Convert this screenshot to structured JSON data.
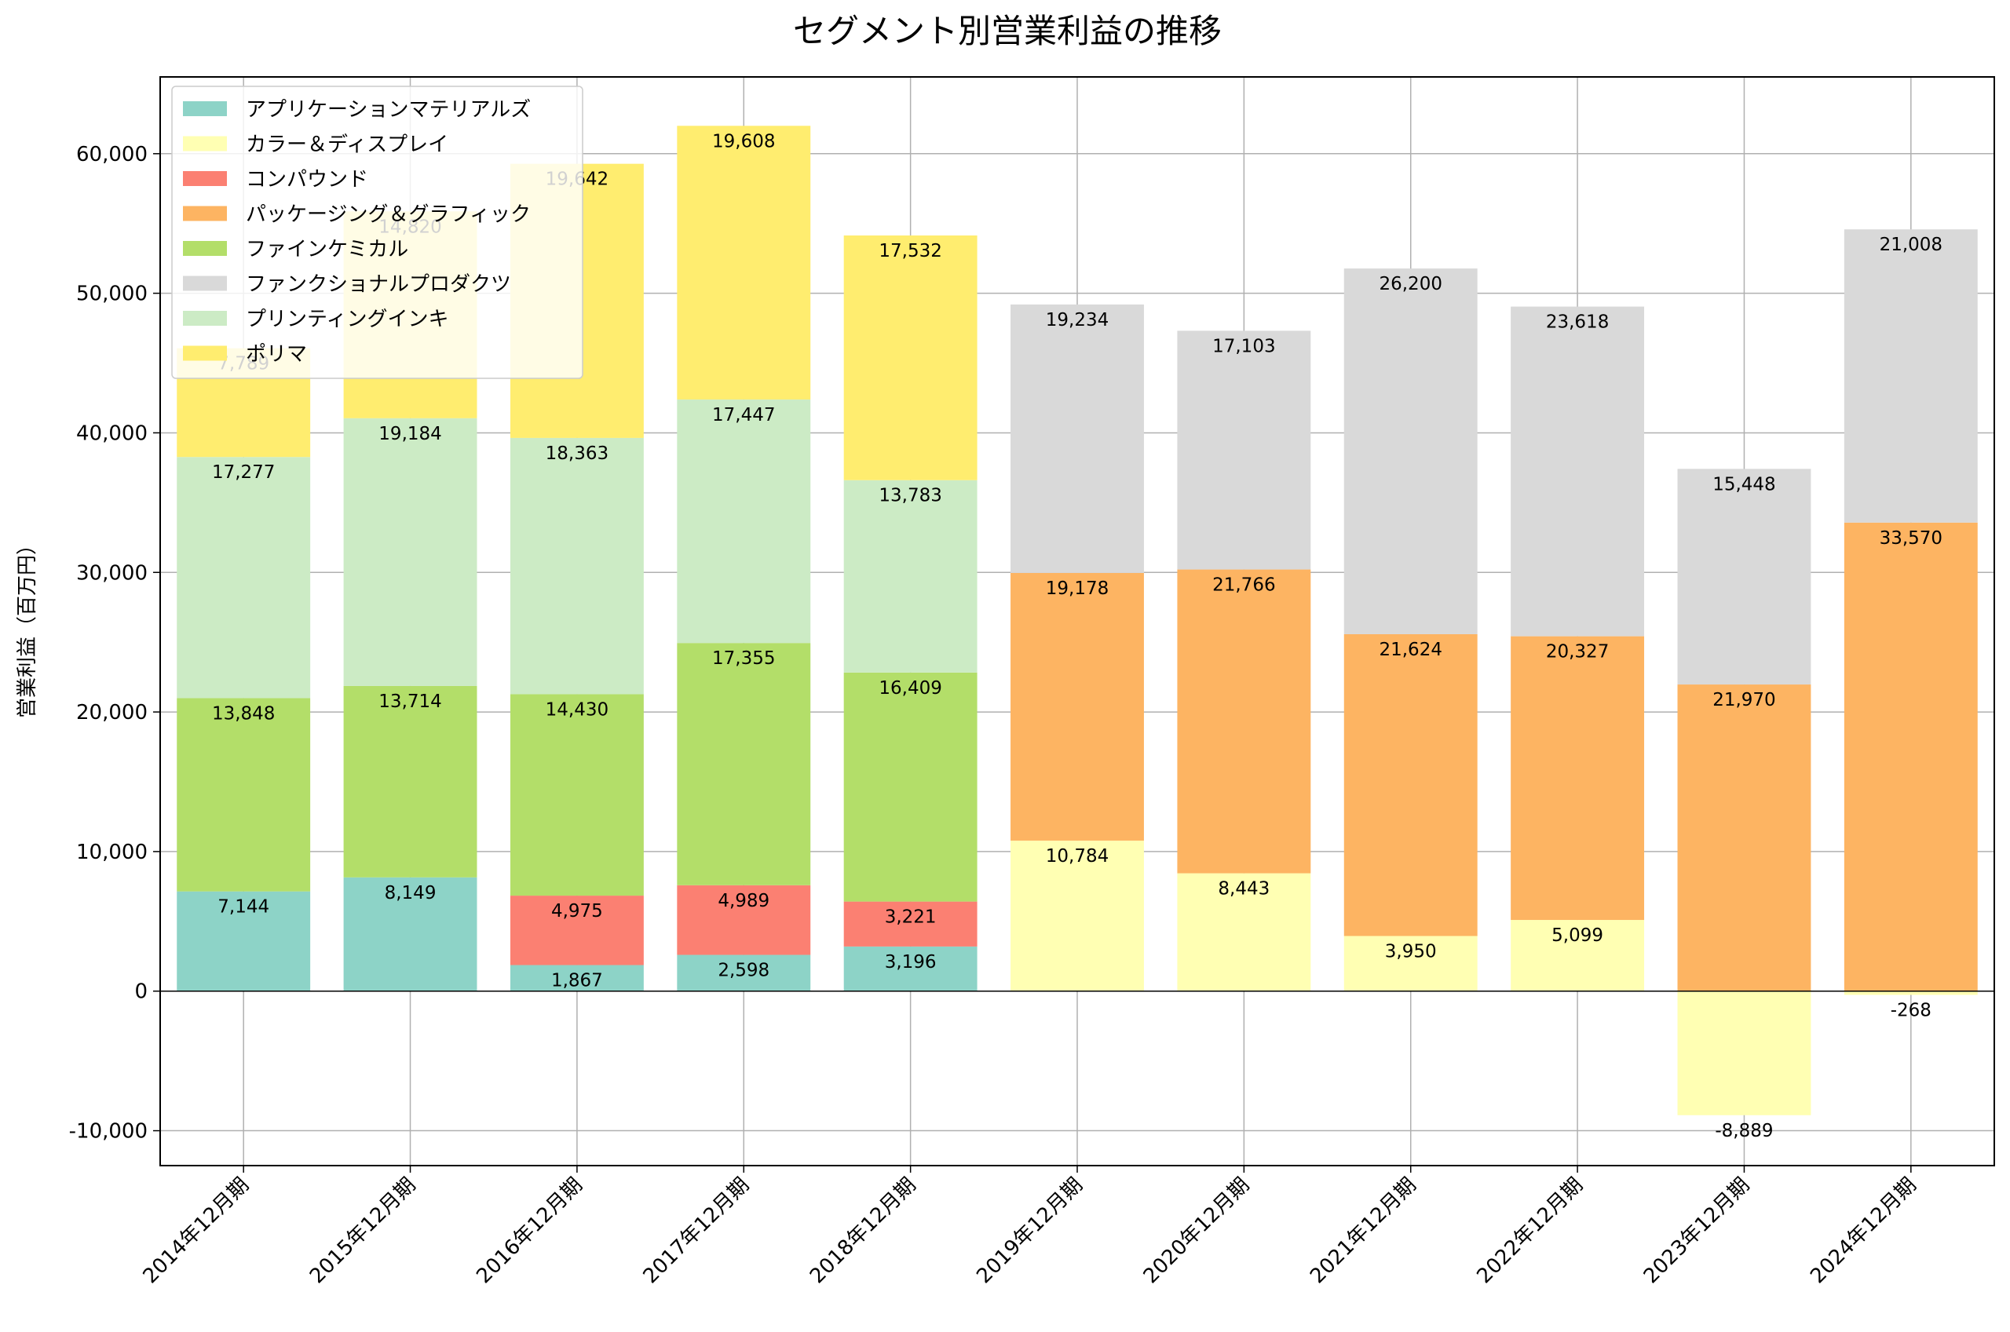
{
  "chart_data": {
    "type": "bar",
    "stacked": true,
    "title": "セグメント別営業利益の推移",
    "xlabel": "",
    "ylabel": "営業利益（百万円）",
    "ylim": [
      -12500,
      65500
    ],
    "yticks": [
      -10000,
      0,
      10000,
      20000,
      30000,
      40000,
      50000,
      60000
    ],
    "ytick_labels": [
      "-10,000",
      "0",
      "10,000",
      "20,000",
      "30,000",
      "40,000",
      "50,000",
      "60,000"
    ],
    "grid": true,
    "legend_position": "top-left",
    "categories": [
      "2014年12月期",
      "2015年12月期",
      "2016年12月期",
      "2017年12月期",
      "2018年12月期",
      "2019年12月期",
      "2020年12月期",
      "2021年12月期",
      "2022年12月期",
      "2023年12月期",
      "2024年12月期"
    ],
    "series": [
      {
        "name": "アプリケーションマテリアルズ",
        "color": "#8dd3c7",
        "values": [
          7144,
          8149,
          1867,
          2598,
          3196,
          null,
          null,
          null,
          null,
          null,
          null
        ]
      },
      {
        "name": "カラー＆ディスプレイ",
        "color": "#ffffb3",
        "values": [
          null,
          null,
          null,
          null,
          null,
          10784,
          8443,
          3950,
          5099,
          -8889,
          -268
        ]
      },
      {
        "name": "コンパウンド",
        "color": "#fb8072",
        "values": [
          null,
          null,
          4975,
          4989,
          3221,
          null,
          null,
          null,
          null,
          null,
          null
        ]
      },
      {
        "name": "パッケージング＆グラフィック",
        "color": "#fdb462",
        "values": [
          null,
          null,
          null,
          null,
          null,
          19178,
          21766,
          21624,
          20327,
          21970,
          33570
        ]
      },
      {
        "name": "ファインケミカル",
        "color": "#b3de69",
        "values": [
          13848,
          13714,
          14430,
          17355,
          16409,
          null,
          null,
          null,
          null,
          null,
          null
        ]
      },
      {
        "name": "ファンクショナルプロダクツ",
        "color": "#d9d9d9",
        "values": [
          null,
          null,
          null,
          null,
          null,
          19234,
          17103,
          26200,
          23618,
          15448,
          21008
        ]
      },
      {
        "name": "プリンティングインキ",
        "color": "#ccebc5",
        "values": [
          17277,
          19184,
          18363,
          17447,
          13783,
          null,
          null,
          null,
          null,
          null,
          null
        ]
      },
      {
        "name": "ポリマ",
        "color": "#ffed6f",
        "values": [
          7789,
          14820,
          19642,
          19608,
          17532,
          null,
          null,
          null,
          null,
          null,
          null
        ]
      }
    ]
  }
}
